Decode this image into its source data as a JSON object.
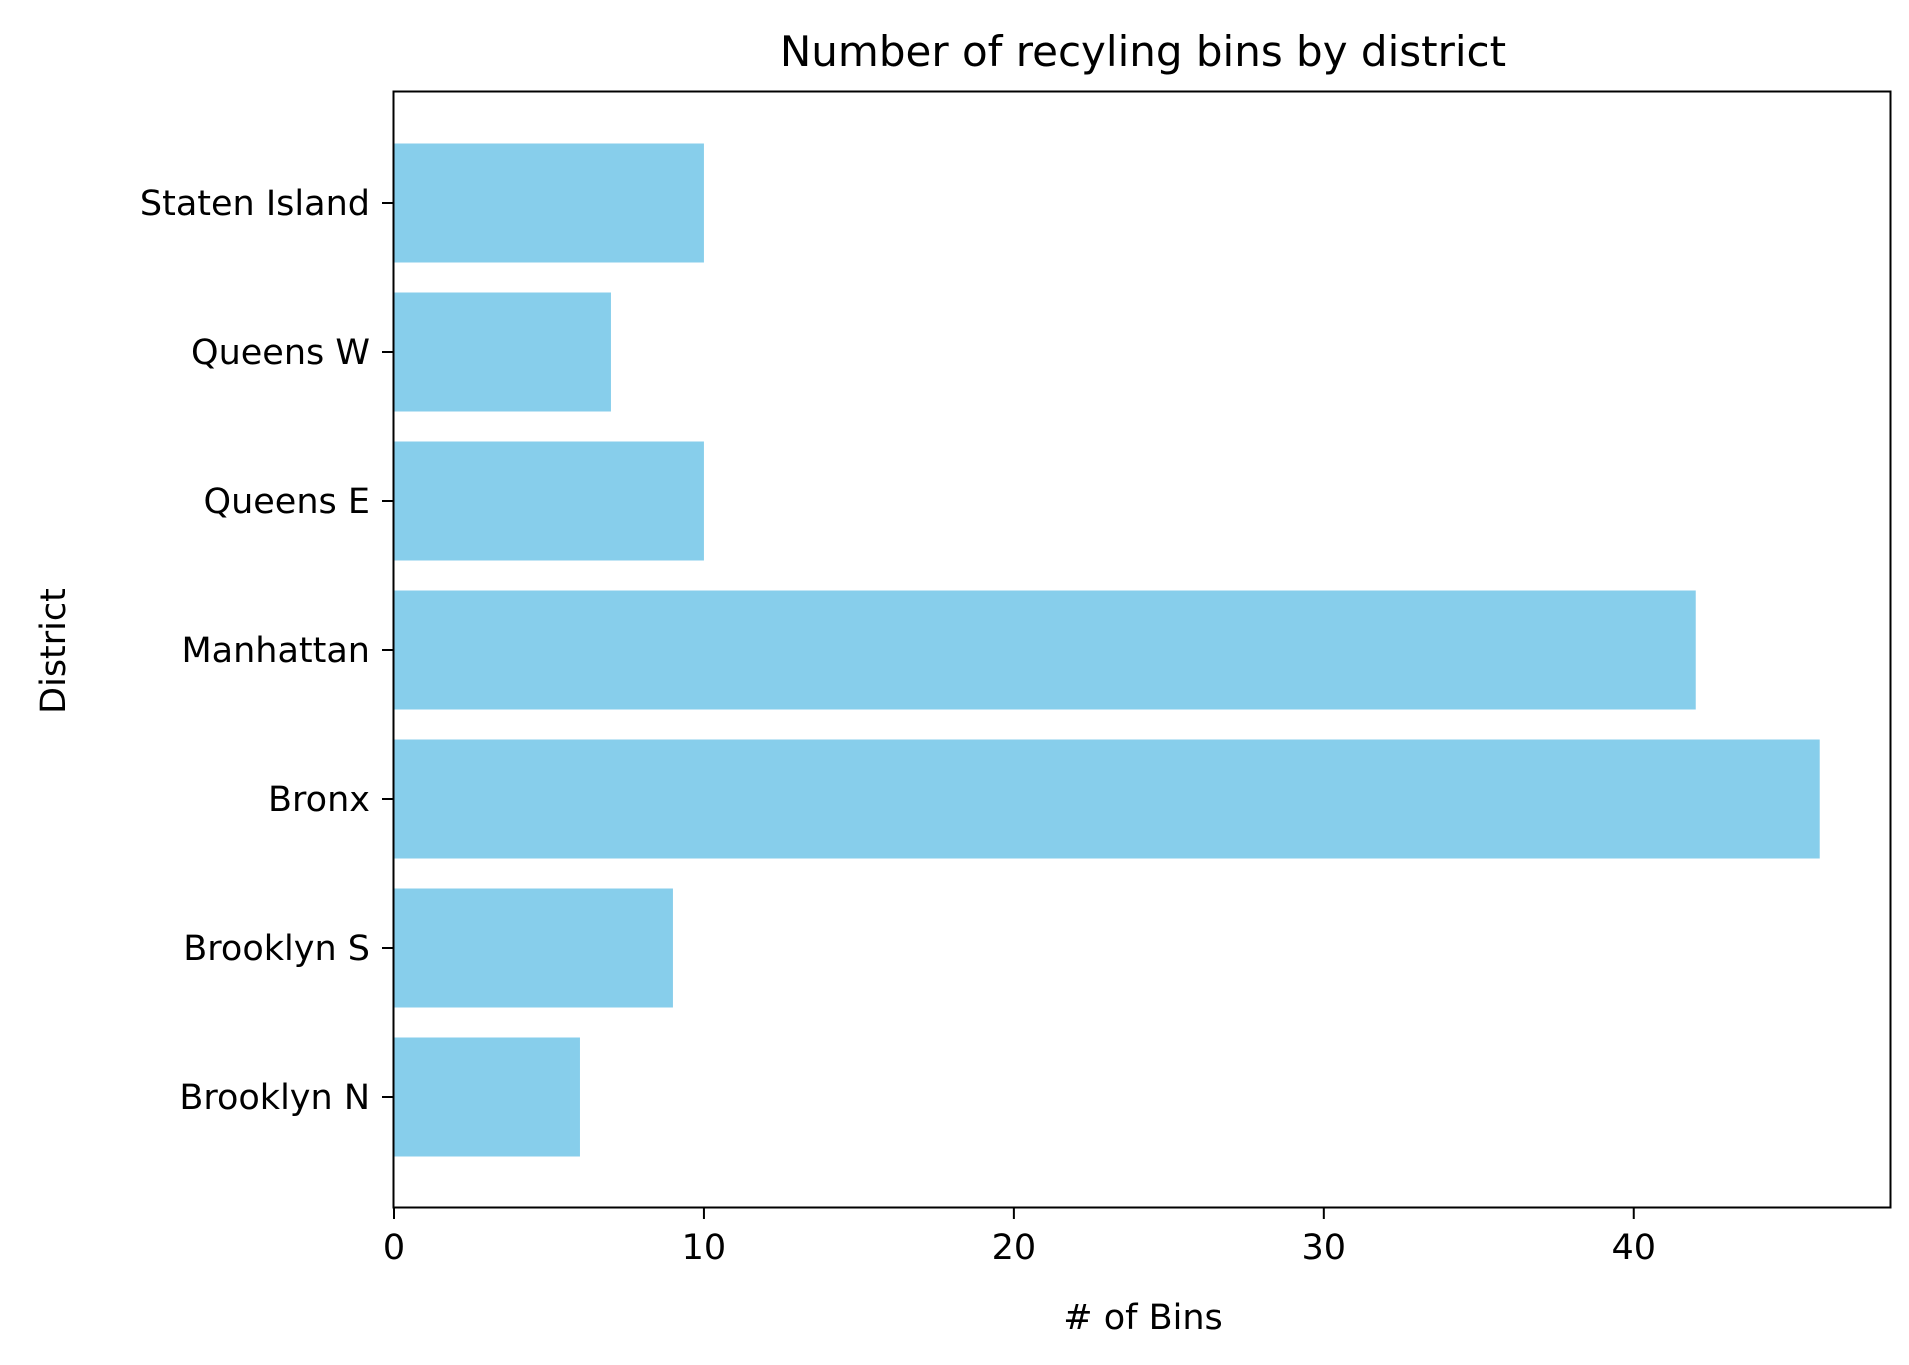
{
  "chart_data": {
    "type": "bar",
    "orientation": "horizontal",
    "title": "Number of recyling bins by district",
    "xlabel": "# of Bins",
    "ylabel": "District",
    "categories": [
      "Brooklyn N",
      "Brooklyn S",
      "Bronx",
      "Manhattan",
      "Queens E",
      "Queens W",
      "Staten Island"
    ],
    "values": [
      6,
      9,
      46,
      42,
      10,
      7,
      10
    ],
    "xlim": [
      0,
      48.3
    ],
    "xticks": [
      0,
      10,
      20,
      30,
      40
    ],
    "grid": false,
    "legend": "none",
    "bar_color": "#87CEEB"
  }
}
